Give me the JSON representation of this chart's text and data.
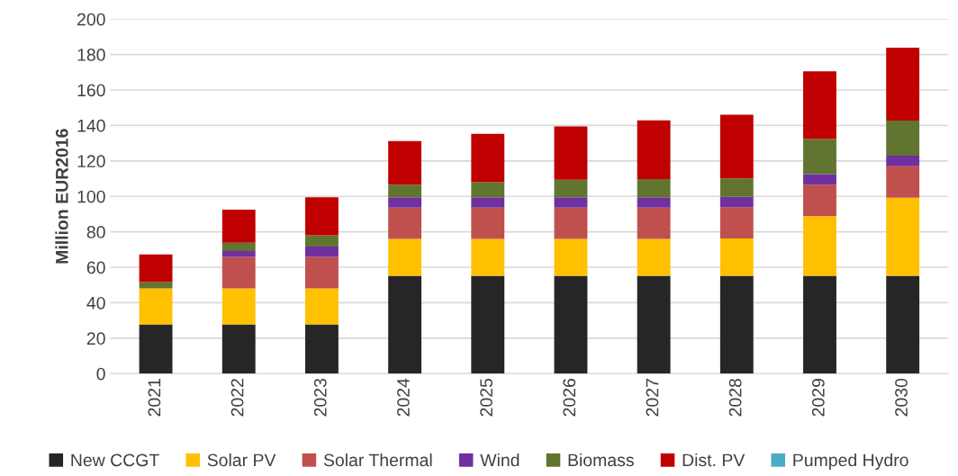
{
  "chart_data": {
    "type": "bar",
    "stacked": true,
    "ylabel": "Million EUR2016",
    "categories": [
      "2021",
      "2022",
      "2023",
      "2024",
      "2025",
      "2026",
      "2027",
      "2028",
      "2029",
      "2030"
    ],
    "series": [
      {
        "name": "New CCGT",
        "color": "#262626",
        "values": [
          27.8,
          27.8,
          27.8,
          55.2,
          55.2,
          55.2,
          55.2,
          55.2,
          55.2,
          55.2
        ]
      },
      {
        "name": "Solar PV",
        "color": "#ffc000",
        "values": [
          20.3,
          20.3,
          20.3,
          20.8,
          20.8,
          20.8,
          20.8,
          21.0,
          33.6,
          44.0
        ]
      },
      {
        "name": "Solar Thermal",
        "color": "#c0504d",
        "values": [
          0,
          17.8,
          17.8,
          17.7,
          17.7,
          17.7,
          17.7,
          17.7,
          17.8,
          17.8
        ]
      },
      {
        "name": "Wind",
        "color": "#7030a0",
        "values": [
          0,
          3.3,
          5.8,
          5.8,
          5.8,
          5.8,
          5.8,
          5.8,
          5.9,
          5.9
        ]
      },
      {
        "name": "Biomass",
        "color": "#617530",
        "values": [
          3.6,
          4.6,
          6.3,
          7.1,
          8.5,
          9.9,
          10.2,
          10.4,
          19.8,
          19.8
        ]
      },
      {
        "name": "Dist. PV",
        "color": "#c00000",
        "values": [
          15.5,
          18.7,
          21.5,
          24.6,
          27.3,
          30.0,
          33.2,
          35.9,
          38.2,
          41.1
        ]
      },
      {
        "name": "Pumped Hydro",
        "color": "#4bacc6",
        "values": [
          0,
          0,
          0,
          0,
          0,
          0,
          0,
          0,
          0,
          0
        ]
      }
    ],
    "ylim": [
      0,
      200
    ],
    "yticks": [
      0,
      20,
      40,
      60,
      80,
      100,
      120,
      140,
      160,
      180,
      200
    ],
    "grid": "y",
    "legend": "bottom"
  }
}
